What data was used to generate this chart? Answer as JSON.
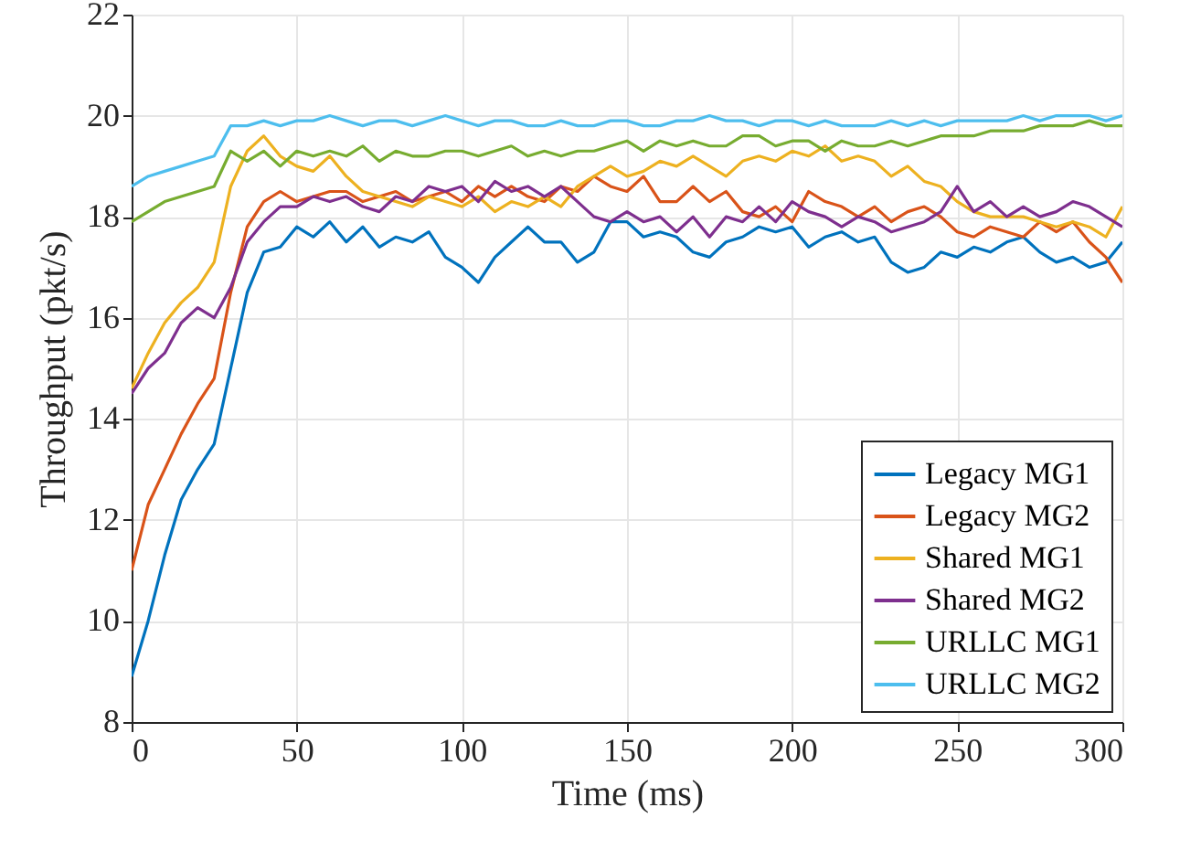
{
  "chart_data": {
    "type": "line",
    "xlabel": "Time (ms)",
    "ylabel": "Throughput (pkt/s)",
    "x": [
      0,
      5,
      10,
      15,
      20,
      25,
      30,
      35,
      40,
      45,
      50,
      55,
      60,
      65,
      70,
      75,
      80,
      85,
      90,
      95,
      100,
      105,
      110,
      115,
      120,
      125,
      130,
      135,
      140,
      145,
      150,
      155,
      160,
      165,
      170,
      175,
      180,
      185,
      190,
      195,
      200,
      205,
      210,
      215,
      220,
      225,
      230,
      235,
      240,
      245,
      250,
      255,
      260,
      265,
      270,
      275,
      280,
      285,
      290,
      295,
      300
    ],
    "series": [
      {
        "name": "Legacy MG1",
        "color": "#0072bd",
        "values": [
          8.9,
          10.0,
          11.3,
          12.4,
          13.0,
          13.5,
          15.0,
          16.5,
          17.3,
          17.4,
          17.8,
          17.6,
          17.9,
          17.5,
          17.8,
          17.4,
          17.6,
          17.5,
          17.7,
          17.2,
          17.0,
          16.7,
          17.2,
          17.5,
          17.8,
          17.5,
          17.5,
          17.1,
          17.3,
          17.9,
          17.9,
          17.6,
          17.7,
          17.6,
          17.3,
          17.2,
          17.5,
          17.6,
          17.8,
          17.7,
          17.8,
          17.4,
          17.6,
          17.7,
          17.5,
          17.6,
          17.1,
          16.9,
          17.0,
          17.3,
          17.2,
          17.4,
          17.3,
          17.5,
          17.6,
          17.3,
          17.1,
          17.2,
          17.0,
          17.1,
          17.5
        ]
      },
      {
        "name": "Legacy MG2",
        "color": "#d95319",
        "values": [
          11.0,
          12.3,
          13.0,
          13.7,
          14.3,
          14.8,
          16.5,
          17.8,
          18.3,
          18.5,
          18.3,
          18.4,
          18.5,
          18.5,
          18.3,
          18.4,
          18.5,
          18.3,
          18.4,
          18.5,
          18.3,
          18.6,
          18.4,
          18.6,
          18.4,
          18.3,
          18.6,
          18.5,
          18.8,
          18.6,
          18.5,
          18.8,
          18.3,
          18.3,
          18.6,
          18.3,
          18.5,
          18.1,
          18.0,
          18.2,
          17.9,
          18.5,
          18.3,
          18.2,
          18.0,
          18.2,
          17.9,
          18.1,
          18.2,
          18.0,
          17.7,
          17.6,
          17.8,
          17.7,
          17.6,
          17.9,
          17.7,
          17.9,
          17.5,
          17.2,
          16.7
        ]
      },
      {
        "name": "Shared MG1",
        "color": "#edb120",
        "values": [
          14.6,
          15.3,
          15.9,
          16.3,
          16.6,
          17.1,
          18.6,
          19.3,
          19.6,
          19.2,
          19.0,
          18.9,
          19.2,
          18.8,
          18.5,
          18.4,
          18.3,
          18.2,
          18.4,
          18.3,
          18.2,
          18.4,
          18.1,
          18.3,
          18.2,
          18.4,
          18.2,
          18.6,
          18.8,
          19.0,
          18.8,
          18.9,
          19.1,
          19.0,
          19.2,
          19.0,
          18.8,
          19.1,
          19.2,
          19.1,
          19.3,
          19.2,
          19.4,
          19.1,
          19.2,
          19.1,
          18.8,
          19.0,
          18.7,
          18.6,
          18.3,
          18.1,
          18.0,
          18.0,
          18.0,
          17.9,
          17.8,
          17.9,
          17.8,
          17.6,
          18.2
        ]
      },
      {
        "name": "Shared MG2",
        "color": "#7e2f8e",
        "values": [
          14.5,
          15.0,
          15.3,
          15.9,
          16.2,
          16.0,
          16.6,
          17.5,
          17.9,
          18.2,
          18.2,
          18.4,
          18.3,
          18.4,
          18.2,
          18.1,
          18.4,
          18.3,
          18.6,
          18.5,
          18.6,
          18.3,
          18.7,
          18.5,
          18.6,
          18.4,
          18.6,
          18.3,
          18.0,
          17.9,
          18.1,
          17.9,
          18.0,
          17.7,
          18.0,
          17.6,
          18.0,
          17.9,
          18.2,
          17.9,
          18.3,
          18.1,
          18.0,
          17.8,
          18.0,
          17.9,
          17.7,
          17.8,
          17.9,
          18.1,
          18.6,
          18.1,
          18.3,
          18.0,
          18.2,
          18.0,
          18.1,
          18.3,
          18.2,
          18.0,
          17.8
        ]
      },
      {
        "name": "URLLC MG1",
        "color": "#77ac30",
        "values": [
          17.9,
          18.1,
          18.3,
          18.4,
          18.5,
          18.6,
          19.3,
          19.1,
          19.3,
          19.0,
          19.3,
          19.2,
          19.3,
          19.2,
          19.4,
          19.1,
          19.3,
          19.2,
          19.2,
          19.3,
          19.3,
          19.2,
          19.3,
          19.4,
          19.2,
          19.3,
          19.2,
          19.3,
          19.3,
          19.4,
          19.5,
          19.3,
          19.5,
          19.4,
          19.5,
          19.4,
          19.4,
          19.6,
          19.6,
          19.4,
          19.5,
          19.5,
          19.3,
          19.5,
          19.4,
          19.4,
          19.5,
          19.4,
          19.5,
          19.6,
          19.6,
          19.6,
          19.7,
          19.7,
          19.7,
          19.8,
          19.8,
          19.8,
          19.9,
          19.8,
          19.8
        ]
      },
      {
        "name": "URLLC MG2",
        "color": "#4dbeee",
        "values": [
          18.6,
          18.8,
          18.9,
          19.0,
          19.1,
          19.2,
          19.8,
          19.8,
          19.9,
          19.8,
          19.9,
          19.9,
          20.0,
          19.9,
          19.8,
          19.9,
          19.9,
          19.8,
          19.9,
          20.0,
          19.9,
          19.8,
          19.9,
          19.9,
          19.8,
          19.8,
          19.9,
          19.8,
          19.8,
          19.9,
          19.9,
          19.8,
          19.8,
          19.9,
          19.9,
          20.0,
          19.9,
          19.9,
          19.8,
          19.9,
          19.9,
          19.8,
          19.9,
          19.8,
          19.8,
          19.8,
          19.9,
          19.8,
          19.9,
          19.8,
          19.9,
          19.9,
          19.9,
          19.9,
          20.0,
          19.9,
          20.0,
          20.0,
          20.0,
          19.9,
          20.0
        ]
      }
    ],
    "xlim": [
      0,
      300
    ],
    "xticks": [
      0,
      50,
      100,
      150,
      200,
      250,
      300
    ],
    "ylim": [
      8,
      22
    ],
    "yticks": [
      8,
      10,
      12,
      14,
      16,
      18,
      20,
      22
    ],
    "grid": true,
    "legend": "bottom right"
  }
}
